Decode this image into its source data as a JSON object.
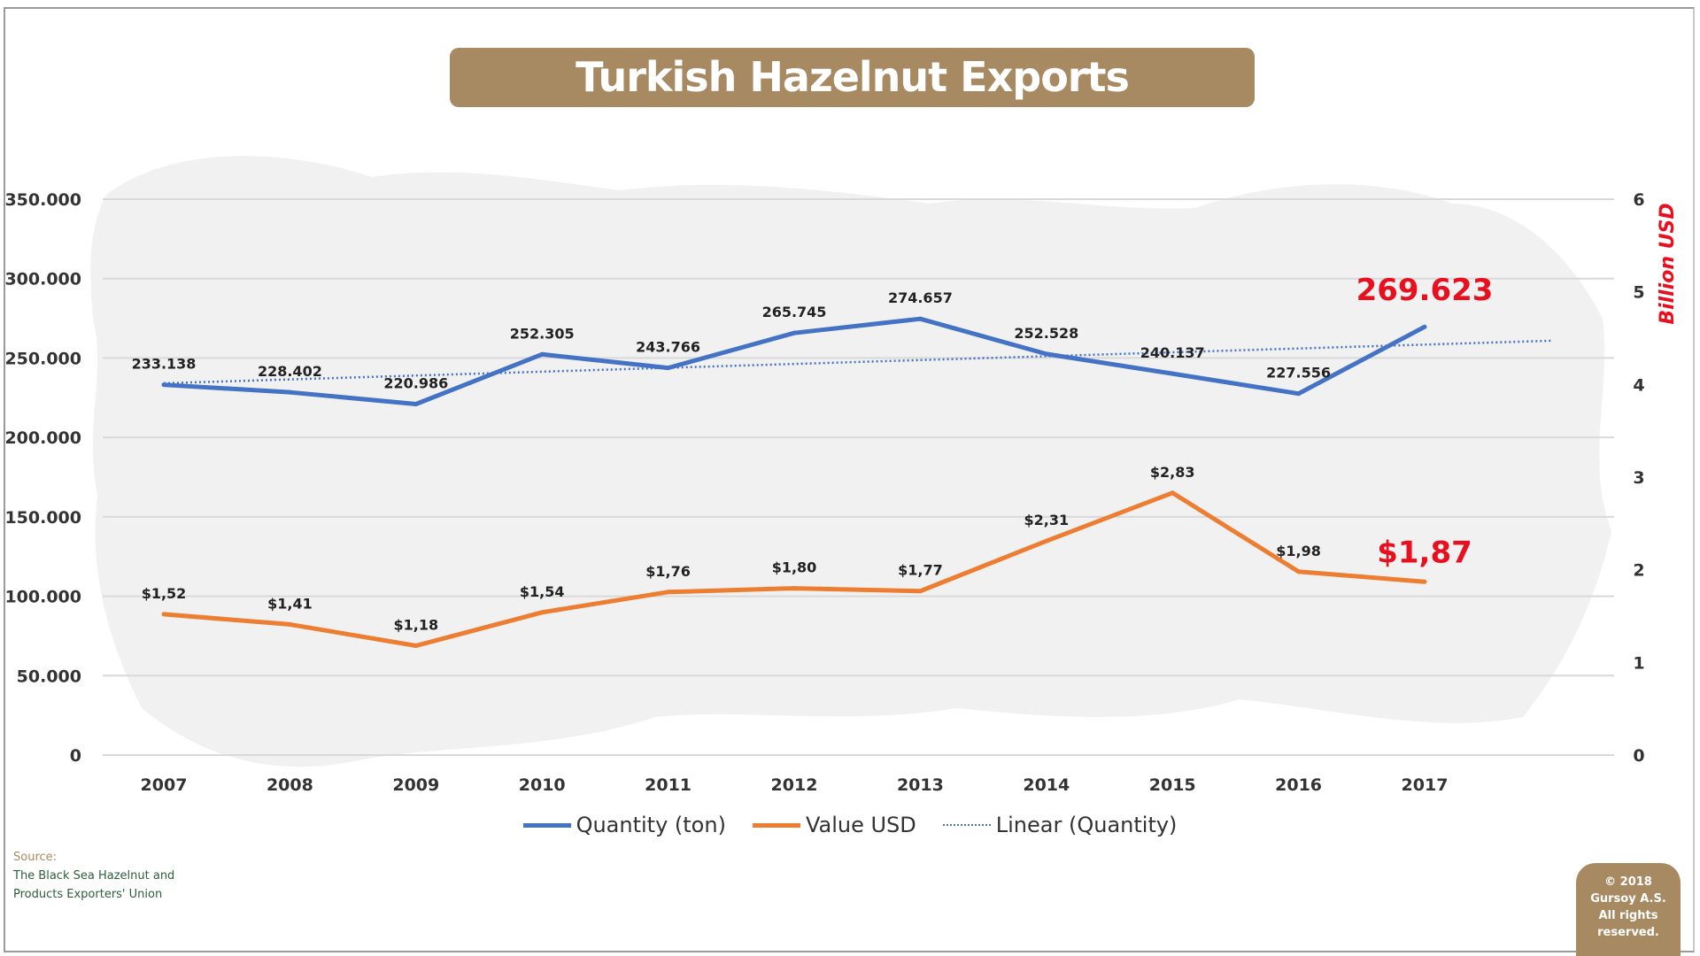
{
  "title": "Turkish Hazelnut Exports",
  "source": {
    "label": "Source:",
    "line1": "The Black Sea Hazelnut and",
    "line2": "Products Exporters' Union"
  },
  "copyright": {
    "line1": "© 2018",
    "line2": "Gursoy A.S.",
    "line3": "All rights",
    "line4": "reserved."
  },
  "colors": {
    "quantity": "#4472C4",
    "value": "#ED7D31",
    "highlight": "#E8101E",
    "title_bg": "#A88A62"
  },
  "chart_data": {
    "type": "line",
    "title": "Turkish Hazelnut Exports",
    "categories": [
      "2007",
      "2008",
      "2009",
      "2010",
      "2011",
      "2012",
      "2013",
      "2014",
      "2015",
      "2016",
      "2017"
    ],
    "series": [
      {
        "name": "Quantity (ton)",
        "axis": "left",
        "values": [
          233138,
          228402,
          220986,
          252305,
          243766,
          265745,
          274657,
          252528,
          240137,
          227556,
          269623
        ],
        "labels": [
          "233.138",
          "228.402",
          "220.986",
          "252.305",
          "243.766",
          "265.745",
          "274.657",
          "252.528",
          "240.137",
          "227.556",
          "269.623"
        ]
      },
      {
        "name": "Value USD",
        "axis": "right",
        "values": [
          1.52,
          1.41,
          1.18,
          1.54,
          1.76,
          1.8,
          1.77,
          2.31,
          2.83,
          1.98,
          1.87
        ],
        "labels": [
          "$1,52",
          "$1,41",
          "$1,18",
          "$1,54",
          "$1,76",
          "$1,80",
          "$1,77",
          "$2,31",
          "$2,83",
          "$1,98",
          "$1,87"
        ]
      },
      {
        "name": "Linear (Quantity)",
        "type": "trendline",
        "of": "Quantity (ton)"
      }
    ],
    "left_axis": {
      "range": [
        0,
        350000
      ],
      "ticks": [
        "0",
        "50.000",
        "100.000",
        "150.000",
        "200.000",
        "250.000",
        "300.000",
        "350.000"
      ]
    },
    "right_axis": {
      "label": "Billion USD",
      "range": [
        0,
        6
      ],
      "ticks": [
        "0",
        "1",
        "2",
        "3",
        "4",
        "5",
        "6"
      ]
    },
    "grid": true,
    "legend": "bottom"
  }
}
